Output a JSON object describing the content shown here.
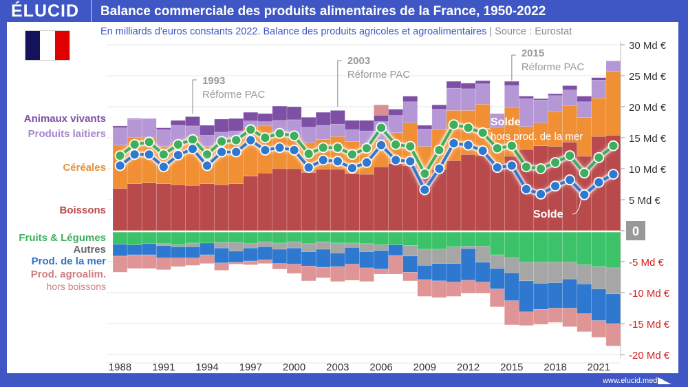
{
  "header": {
    "logo": "ÉLUCID",
    "title": "Balance commerciale des produits alimentaires de la France, 1950-2022",
    "subtitle": "En milliards d'euros constants 2022. Balance des produits agricoles et agroalimentaires",
    "separator": "|",
    "source": "Source : Eurostat"
  },
  "flag": {
    "colors": [
      "#14135a",
      "#ffffff",
      "#e00000"
    ]
  },
  "footer": {
    "url": "www.elucid.media"
  },
  "legend": {
    "positive": [
      {
        "label": "Animaux vivants",
        "color": "#7d4fa5"
      },
      {
        "label": "Produits laitiers",
        "color": "#a486c9"
      },
      {
        "label": "Céréales",
        "color": "#e48f3a"
      },
      {
        "label": "Boissons",
        "color": "#b84a4c"
      }
    ],
    "negative": [
      {
        "label": "Fruits & Légumes",
        "color": "#3cae5c"
      },
      {
        "label": "Autres",
        "color": "#666666"
      },
      {
        "label": "Prod. de la mer",
        "color": "#2f74c8"
      },
      {
        "label": "Prod. agroalim.",
        "sublabel": "hors boissons",
        "color": "#d07d80"
      }
    ]
  },
  "chart_data": {
    "type": "bar",
    "stacked": true,
    "title": "Balance commerciale des produits alimentaires de la France, 1950-2022",
    "subtitle": "En milliards d'euros constants 2022",
    "xlabel": "",
    "ylabel": "Md €",
    "ylim": [
      -20,
      30
    ],
    "yticks": [
      {
        "value": 30,
        "label": "30 Md €"
      },
      {
        "value": 25,
        "label": "25 Md €"
      },
      {
        "value": 20,
        "label": "20 Md €"
      },
      {
        "value": 15,
        "label": "15 Md €"
      },
      {
        "value": 10,
        "label": "10 Md €"
      },
      {
        "value": 5,
        "label": "5 Md €"
      },
      {
        "value": 0,
        "label": "0"
      },
      {
        "value": -5,
        "label": "-5 Md €"
      },
      {
        "value": -10,
        "label": "-10 Md €"
      },
      {
        "value": -15,
        "label": "-15 Md €"
      },
      {
        "value": -20,
        "label": "-20 Md €"
      }
    ],
    "xtick_labels": [
      "1988",
      "1991",
      "1994",
      "1997",
      "2000",
      "2003",
      "2006",
      "2009",
      "2012",
      "2015",
      "2018",
      "2021"
    ],
    "grid": true,
    "x": [
      1988,
      1989,
      1990,
      1991,
      1992,
      1993,
      1994,
      1995,
      1996,
      1997,
      1998,
      1999,
      2000,
      2001,
      2002,
      2003,
      2004,
      2005,
      2006,
      2007,
      2008,
      2009,
      2010,
      2011,
      2012,
      2013,
      2014,
      2015,
      2016,
      2017,
      2018,
      2019,
      2020,
      2021,
      2022
    ],
    "series": [
      {
        "name": "Boissons",
        "color": "#b84a4c",
        "values": [
          6.8,
          7.6,
          7.7,
          7.6,
          7.4,
          7.3,
          7.6,
          7.4,
          7.6,
          8.8,
          9.3,
          10.0,
          10.0,
          9.4,
          9.9,
          9.9,
          9.2,
          9.1,
          10.3,
          10.8,
          10.5,
          8.8,
          9.9,
          11.3,
          12.3,
          12.1,
          11.0,
          12.0,
          13.1,
          13.7,
          13.6,
          14.3,
          12.0,
          15.2,
          15.4
        ]
      },
      {
        "name": "Céréales",
        "color": "#f08f33",
        "values": [
          7.0,
          7.5,
          7.4,
          6.0,
          6.8,
          7.8,
          6.0,
          6.9,
          7.5,
          7.9,
          7.6,
          5.4,
          5.0,
          4.8,
          4.8,
          5.3,
          5.2,
          4.8,
          4.4,
          5.0,
          6.9,
          4.8,
          6.4,
          8.1,
          7.1,
          8.3,
          5.7,
          7.9,
          3.7,
          3.7,
          5.6,
          5.9,
          6.3,
          6.2,
          10.3
        ]
      },
      {
        "name": "Produits laitiers",
        "color": "#b597d6",
        "values": [
          2.8,
          2.9,
          3.0,
          2.7,
          2.8,
          1.8,
          1.8,
          1.6,
          1.0,
          1.0,
          0.7,
          2.4,
          2.9,
          2.5,
          2.3,
          2.0,
          1.9,
          2.2,
          2.9,
          2.8,
          3.4,
          2.8,
          3.3,
          3.6,
          3.5,
          3.3,
          2.2,
          3.5,
          4.5,
          3.7,
          2.6,
          2.5,
          2.5,
          2.9,
          1.7
        ]
      },
      {
        "name": "Animaux vivants",
        "color": "#7d4fa5",
        "values": [
          0.3,
          0.1,
          0.0,
          0.3,
          0.8,
          1.5,
          1.6,
          2.1,
          2.0,
          1.4,
          1.3,
          2.3,
          2.1,
          1.6,
          2.1,
          2.2,
          1.5,
          1.7,
          1.0,
          1.0,
          0.9,
          0.6,
          0.7,
          1.1,
          0.9,
          0.5,
          0.0,
          0.7,
          0.4,
          0.2,
          0.3,
          0.7,
          0.9,
          0.4,
          0.0
        ]
      },
      {
        "name": "Fruits & Légumes",
        "color": "#3cc36a",
        "values": [
          -2.0,
          -2.1,
          -1.9,
          -1.9,
          -2.1,
          -1.8,
          -1.8,
          -1.7,
          -1.7,
          -1.9,
          -1.6,
          -1.8,
          -1.6,
          -1.9,
          -1.6,
          -1.8,
          -1.8,
          -1.9,
          -2.1,
          -2.1,
          -2.2,
          -2.8,
          -2.8,
          -2.4,
          -2.3,
          -2.3,
          -3.7,
          -4.2,
          -4.9,
          -4.9,
          -4.9,
          -4.9,
          -5.3,
          -5.6,
          -5.8
        ]
      },
      {
        "name": "Autres",
        "color": "#a6a6a6",
        "values": [
          0.0,
          0.0,
          0.0,
          -0.3,
          -0.3,
          -0.6,
          0.0,
          -0.9,
          -1.4,
          -0.7,
          -0.8,
          -1.0,
          -1.0,
          -1.3,
          -1.2,
          -1.6,
          -0.7,
          -1.3,
          -0.9,
          0.0,
          -1.7,
          -2.6,
          -2.3,
          -2.7,
          -0.4,
          -2.6,
          -2.2,
          -2.4,
          -3.0,
          -3.4,
          -3.3,
          -2.7,
          -3.1,
          -3.6,
          -4.2
        ]
      },
      {
        "name": "Prod. de la mer",
        "color": "#2f78d0",
        "values": [
          -1.9,
          -1.6,
          -1.8,
          -2.0,
          -1.8,
          -1.8,
          -1.9,
          -2.4,
          -1.8,
          -2.1,
          -2.1,
          -2.3,
          -2.6,
          -2.3,
          -2.9,
          -2.2,
          -2.7,
          -2.6,
          -3.0,
          -1.7,
          -2.6,
          -2.3,
          -2.8,
          -3.0,
          -5.1,
          -3.2,
          -3.3,
          -4.5,
          -5.0,
          -4.2,
          -4.1,
          -4.7,
          -4.8,
          -5.1,
          -4.8
        ]
      },
      {
        "name": "Prod. agroalim. hors boissons",
        "color": "#df9495",
        "values": [
          -2.6,
          -2.2,
          -2.2,
          -1.9,
          -1.4,
          -1.2,
          -1.4,
          -1.2,
          -0.3,
          -0.6,
          -0.6,
          -0.9,
          -1.5,
          -2.4,
          -1.7,
          -2.4,
          -2.6,
          -2.2,
          -0.8,
          -3.0,
          -1.4,
          -2.7,
          -2.7,
          -2.3,
          -2.1,
          -1.8,
          -2.9,
          -3.9,
          -2.2,
          -2.4,
          -2.3,
          -3.0,
          -2.9,
          -2.7,
          -3.6
        ]
      }
    ],
    "lines": [
      {
        "name": "Solde",
        "color": "#2f78d0",
        "values": [
          10.5,
          12.3,
          12.3,
          10.3,
          12.2,
          13.2,
          10.5,
          12.7,
          12.7,
          14.6,
          13.0,
          13.4,
          13.0,
          10.2,
          11.4,
          11.2,
          10.1,
          11.0,
          13.8,
          11.4,
          11.2,
          6.6,
          10.0,
          14.1,
          13.8,
          12.9,
          10.2,
          10.5,
          6.7,
          5.9,
          7.2,
          8.2,
          5.8,
          7.8,
          9.1
        ]
      },
      {
        "name": "Solde hors prod. de la mer",
        "color": "#3cae5c",
        "values": [
          12.1,
          13.9,
          14.3,
          12.3,
          13.9,
          14.7,
          12.3,
          14.4,
          14.6,
          16.3,
          15.0,
          15.7,
          15.3,
          12.4,
          13.4,
          13.4,
          12.3,
          13.3,
          16.6,
          13.9,
          13.6,
          9.2,
          13.0,
          17.1,
          16.6,
          15.8,
          13.3,
          13.7,
          10.3,
          10.0,
          11.0,
          12.1,
          9.3,
          11.8,
          13.7
        ]
      }
    ],
    "extra_marks": [
      {
        "name": "Fruits & Légumes excédent",
        "year": 2006,
        "value_range": [
          18.6,
          20.3
        ],
        "color": "#d99090"
      }
    ],
    "annotations": [
      {
        "year": 1993,
        "label": "1993",
        "text": "Réforme PAC"
      },
      {
        "year": 2003,
        "label": "2003",
        "text": "Réforme PAC"
      },
      {
        "year": 2015,
        "label": "2015",
        "text": "Réforme PAC"
      },
      {
        "target": "Solde hors prod. de la mer",
        "label": "Solde",
        "text": "hors prod. de la mer"
      },
      {
        "target": "Solde",
        "label": "Solde"
      }
    ]
  }
}
